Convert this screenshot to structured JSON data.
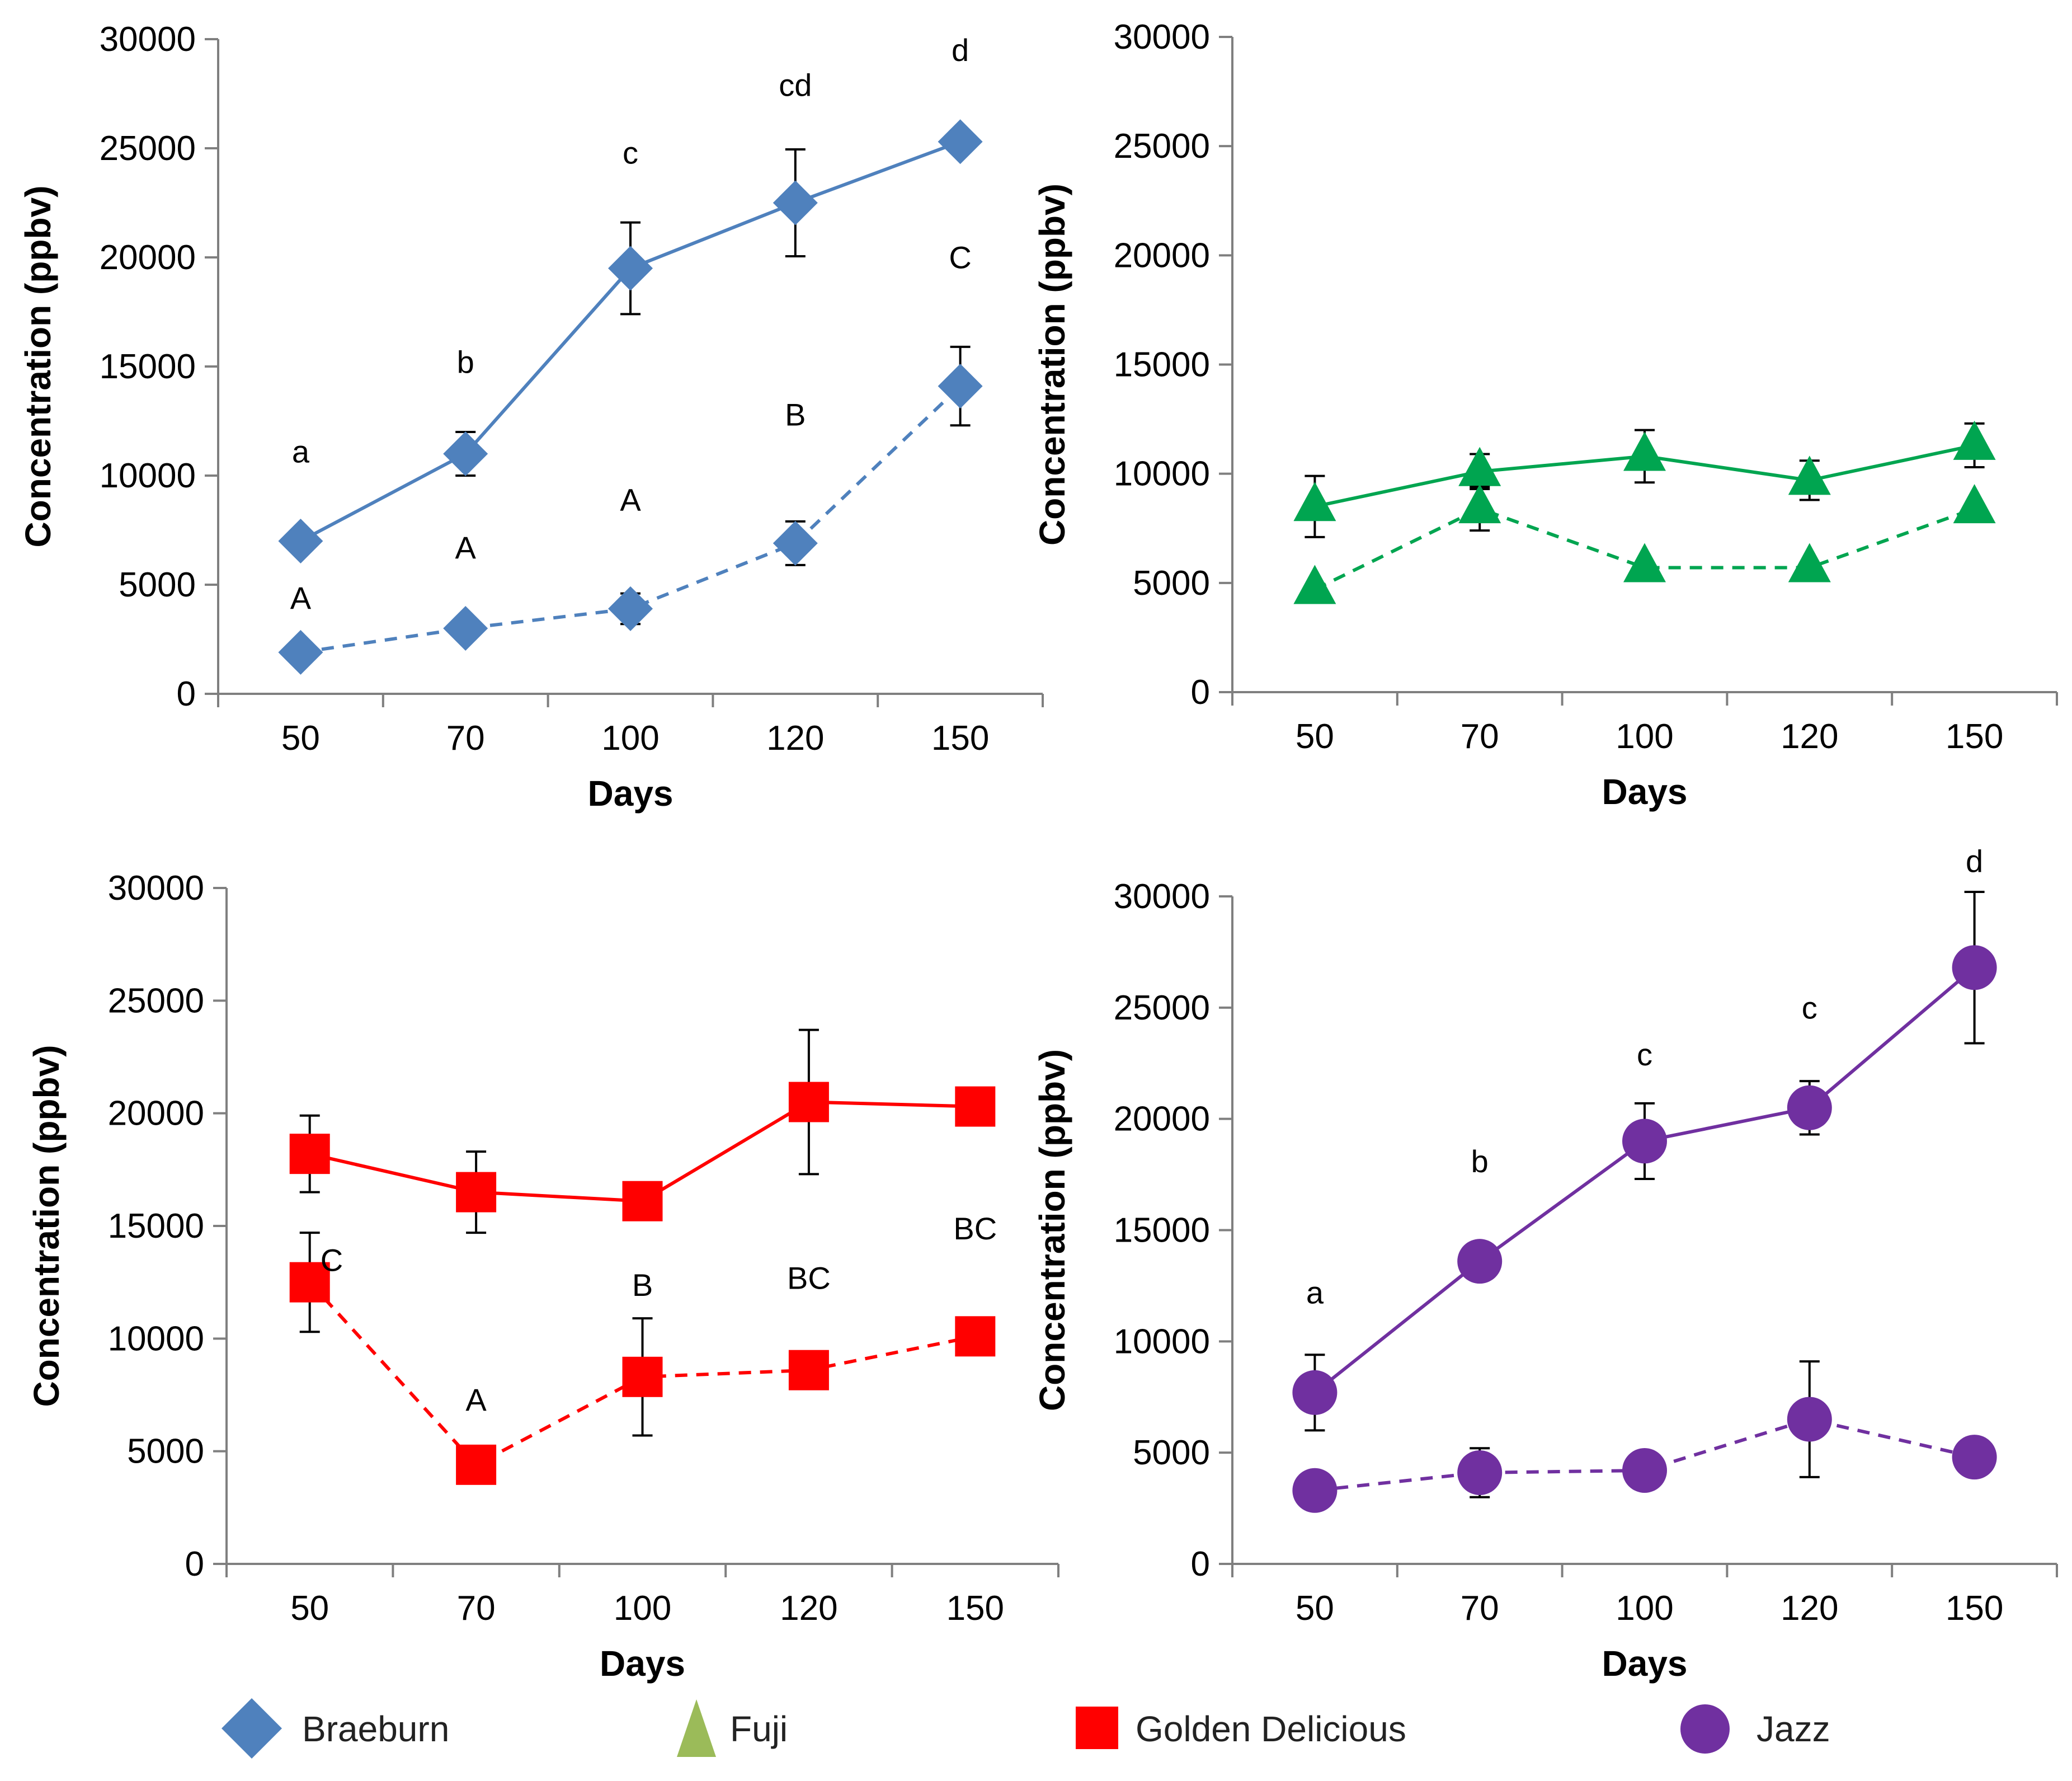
{
  "legend": {
    "items": [
      {
        "label": "Braeburn",
        "color": "#4F81BD",
        "marker": "diamond"
      },
      {
        "label": "Fuji",
        "color": "#9BBB59",
        "marker": "triangle"
      },
      {
        "label": "Golden Delicious",
        "color": "#FF0000",
        "marker": "square"
      },
      {
        "label": "Jazz",
        "color": "#7030A0",
        "marker": "circle"
      }
    ]
  },
  "chart_data": [
    {
      "type": "line",
      "cultivar": "Braeburn",
      "color": "#4F81BD",
      "marker": "diamond",
      "categories": [
        "50",
        "70",
        "100",
        "120",
        "150"
      ],
      "xlabel": "Days",
      "ylabel": "Concentration (ppbv)",
      "ylim": [
        0,
        30000
      ],
      "yticks": [
        "0",
        "5000",
        "10000",
        "15000",
        "20000",
        "25000",
        "30000"
      ],
      "series": [
        {
          "name": "solid",
          "dash": false,
          "values": [
            7000,
            11000,
            19500,
            22500,
            25300
          ],
          "errors": [
            400,
            1000,
            2100,
            2450,
            500
          ]
        },
        {
          "name": "dashed",
          "dash": true,
          "values": [
            1900,
            3000,
            3900,
            6900,
            14100
          ],
          "errors": [
            150,
            500,
            700,
            1000,
            1800
          ]
        }
      ],
      "annotations": [
        {
          "text": "a",
          "x": "50",
          "y": 10600
        },
        {
          "text": "b",
          "x": "70",
          "y": 14700
        },
        {
          "text": "c",
          "x": "100",
          "y": 24300
        },
        {
          "text": "cd",
          "x": "120",
          "y": 27400
        },
        {
          "text": "d",
          "x": "150",
          "y": 29000
        },
        {
          "text": "A",
          "x": "50",
          "y": 3900
        },
        {
          "text": "A",
          "x": "70",
          "y": 6200
        },
        {
          "text": "A",
          "x": "100",
          "y": 8400
        },
        {
          "text": "B",
          "x": "120",
          "y": 12300
        },
        {
          "text": "C",
          "x": "150",
          "y": 19500
        }
      ]
    },
    {
      "type": "line",
      "cultivar": "Fuji",
      "color": "#00A550",
      "marker": "triangle",
      "categories": [
        "50",
        "70",
        "100",
        "120",
        "150"
      ],
      "xlabel": "Days",
      "ylabel": "Concentration (ppbv)",
      "ylim": [
        0,
        30000
      ],
      "yticks": [
        "0",
        "5000",
        "10000",
        "15000",
        "20000",
        "25000",
        "30000"
      ],
      "series": [
        {
          "name": "solid",
          "dash": false,
          "values": [
            8500,
            10100,
            10800,
            9700,
            11300
          ],
          "errors": [
            1400,
            800,
            1200,
            900,
            1000
          ]
        },
        {
          "name": "dashed",
          "dash": true,
          "values": [
            4700,
            8400,
            5700,
            5700,
            8400
          ],
          "errors": [
            0,
            1000,
            0,
            0,
            0
          ]
        }
      ],
      "annotations": []
    },
    {
      "type": "line",
      "cultivar": "Golden Delicious",
      "color": "#FF0000",
      "marker": "square",
      "categories": [
        "50",
        "70",
        "100",
        "120",
        "150"
      ],
      "xlabel": "Days",
      "ylabel": "Concentration (ppbv)",
      "ylim": [
        0,
        30000
      ],
      "yticks": [
        "0",
        "5000",
        "10000",
        "15000",
        "20000",
        "25000",
        "30000"
      ],
      "series": [
        {
          "name": "solid",
          "dash": false,
          "values": [
            18200,
            16500,
            16100,
            20500,
            20300
          ],
          "errors": [
            1700,
            1800,
            0,
            3200,
            0
          ]
        },
        {
          "name": "dashed",
          "dash": true,
          "values": [
            12500,
            4400,
            8300,
            8600,
            10100
          ],
          "errors": [
            2200,
            0,
            2600,
            700,
            500
          ]
        }
      ],
      "annotations": [
        {
          "text": "C",
          "x": "50",
          "y": 13000,
          "dx": 0.6
        },
        {
          "text": "A",
          "x": "70",
          "y": 6800
        },
        {
          "text": "B",
          "x": "100",
          "y": 11900
        },
        {
          "text": "BC",
          "x": "120",
          "y": 12200
        },
        {
          "text": "BC",
          "x": "150",
          "y": 14400
        }
      ]
    },
    {
      "type": "line",
      "cultivar": "Jazz",
      "color": "#7030A0",
      "marker": "circle",
      "categories": [
        "50",
        "70",
        "100",
        "120",
        "150"
      ],
      "xlabel": "Days",
      "ylabel": "Concentration (ppbv)",
      "ylim": [
        0,
        30000
      ],
      "yticks": [
        "0",
        "5000",
        "10000",
        "15000",
        "20000",
        "25000",
        "30000"
      ],
      "series": [
        {
          "name": "solid",
          "dash": false,
          "values": [
            7700,
            13600,
            19000,
            20500,
            26800
          ],
          "errors": [
            1700,
            500,
            1700,
            1200,
            3400
          ]
        },
        {
          "name": "dashed",
          "dash": true,
          "values": [
            3300,
            4100,
            4200,
            6500,
            4800
          ],
          "errors": [
            0,
            1100,
            0,
            2600,
            600
          ]
        }
      ],
      "annotations": [
        {
          "text": "a",
          "x": "50",
          "y": 11700
        },
        {
          "text": "b",
          "x": "70",
          "y": 17600
        },
        {
          "text": "c",
          "x": "100",
          "y": 22400
        },
        {
          "text": "c",
          "x": "120",
          "y": 24500
        },
        {
          "text": "d",
          "x": "150",
          "y": 31100
        }
      ]
    }
  ]
}
